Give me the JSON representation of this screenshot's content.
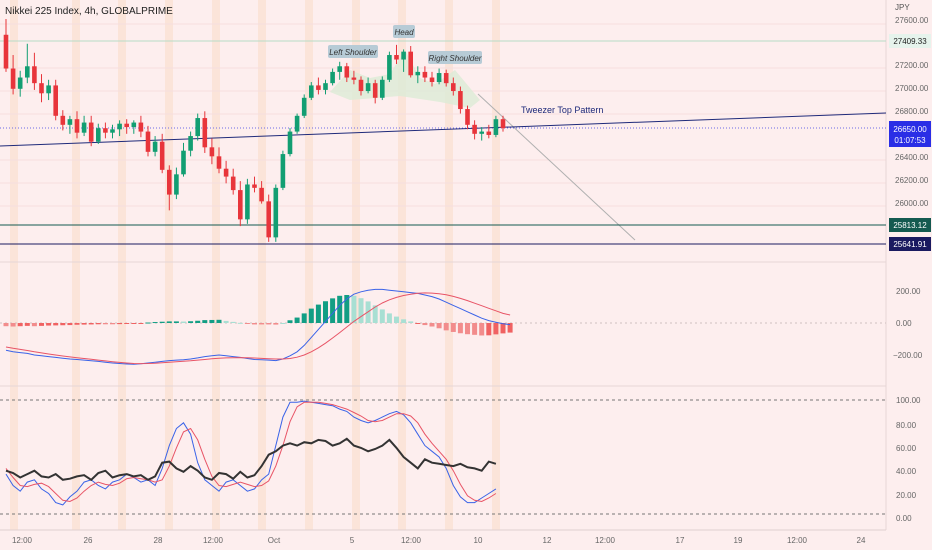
{
  "header": {
    "symbol_title": "Nikkei 225 Index, 4h, GLOBALPRIME",
    "currency": "JPY"
  },
  "annotations": {
    "left_shoulder": "Left Shoulder",
    "head": "Head",
    "right_shoulder": "Right Shoulder",
    "pattern_label": "Tweezer Top Pattern"
  },
  "price_axis": {
    "ticks": [
      "27600.00",
      "27200.00",
      "27000.00",
      "26800.00",
      "26400.00",
      "26200.00",
      "26000.00"
    ],
    "tag_top": {
      "value": "27409.33",
      "color": "#e6f3ec"
    },
    "tag_last": {
      "value": "26650.00",
      "time": "01:07:53",
      "color": "#2a2ee6"
    },
    "tag_support1": {
      "value": "25813.12",
      "color": "#145a50"
    },
    "tag_support2": {
      "value": "25641.91",
      "color": "#1a1a60"
    }
  },
  "macd_axis": {
    "ticks": [
      "200.00",
      "0.00",
      "−200.00"
    ]
  },
  "stoch_axis": {
    "ticks": [
      "100.00",
      "80.00",
      "60.00",
      "40.00",
      "20.00",
      "0.00"
    ]
  },
  "time_axis": {
    "labels": [
      "12:00",
      "26",
      "28",
      "12:00",
      "Oct",
      "5",
      "12:00",
      "10",
      "12",
      "12:00",
      "17",
      "19",
      "12:00",
      "24"
    ]
  },
  "colors": {
    "up": "#129e72",
    "down": "#e8353b",
    "macd": "#3a63e8",
    "signal": "#e85466",
    "trend": "#1f2a7a",
    "support1": "#145a50",
    "support2": "#1a1a60"
  },
  "chart_data": [
    {
      "type": "candlestick",
      "title": "Nikkei 225 Index, 4h, GLOBALPRIME",
      "ylim": [
        25550,
        27700
      ],
      "horizontal_levels": [
        27409.33,
        25813.12,
        25641.91
      ],
      "last_price": 26650.0,
      "candles": [
        {
          "o": 27480,
          "h": 27620,
          "l": 27150,
          "c": 27180
        },
        {
          "o": 27180,
          "h": 27300,
          "l": 26950,
          "c": 27000
        },
        {
          "o": 27000,
          "h": 27160,
          "l": 26930,
          "c": 27100
        },
        {
          "o": 27100,
          "h": 27400,
          "l": 27050,
          "c": 27200
        },
        {
          "o": 27200,
          "h": 27320,
          "l": 26990,
          "c": 27050
        },
        {
          "o": 27050,
          "h": 27130,
          "l": 26880,
          "c": 26960
        },
        {
          "o": 26960,
          "h": 27080,
          "l": 26900,
          "c": 27030
        },
        {
          "o": 27030,
          "h": 27080,
          "l": 26720,
          "c": 26760
        },
        {
          "o": 26760,
          "h": 26810,
          "l": 26630,
          "c": 26680
        },
        {
          "o": 26680,
          "h": 26760,
          "l": 26600,
          "c": 26730
        },
        {
          "o": 26730,
          "h": 26800,
          "l": 26560,
          "c": 26610
        },
        {
          "o": 26610,
          "h": 26760,
          "l": 26580,
          "c": 26700
        },
        {
          "o": 26700,
          "h": 26760,
          "l": 26490,
          "c": 26530
        },
        {
          "o": 26530,
          "h": 26690,
          "l": 26510,
          "c": 26650
        },
        {
          "o": 26650,
          "h": 26700,
          "l": 26560,
          "c": 26610
        },
        {
          "o": 26610,
          "h": 26680,
          "l": 26560,
          "c": 26640
        },
        {
          "o": 26640,
          "h": 26720,
          "l": 26580,
          "c": 26690
        },
        {
          "o": 26690,
          "h": 26730,
          "l": 26600,
          "c": 26660
        },
        {
          "o": 26660,
          "h": 26720,
          "l": 26600,
          "c": 26700
        },
        {
          "o": 26700,
          "h": 26760,
          "l": 26570,
          "c": 26620
        },
        {
          "o": 26620,
          "h": 26670,
          "l": 26400,
          "c": 26440
        },
        {
          "o": 26440,
          "h": 26580,
          "l": 26400,
          "c": 26530
        },
        {
          "o": 26530,
          "h": 26600,
          "l": 26250,
          "c": 26280
        },
        {
          "o": 26280,
          "h": 26320,
          "l": 25920,
          "c": 26060
        },
        {
          "o": 26060,
          "h": 26300,
          "l": 26020,
          "c": 26240
        },
        {
          "o": 26240,
          "h": 26520,
          "l": 26220,
          "c": 26450
        },
        {
          "o": 26450,
          "h": 26620,
          "l": 26400,
          "c": 26580
        },
        {
          "o": 26580,
          "h": 26780,
          "l": 26540,
          "c": 26740
        },
        {
          "o": 26740,
          "h": 26800,
          "l": 26430,
          "c": 26480
        },
        {
          "o": 26480,
          "h": 26560,
          "l": 26330,
          "c": 26400
        },
        {
          "o": 26400,
          "h": 26480,
          "l": 26250,
          "c": 26290
        },
        {
          "o": 26290,
          "h": 26360,
          "l": 26160,
          "c": 26220
        },
        {
          "o": 26220,
          "h": 26290,
          "l": 26060,
          "c": 26100
        },
        {
          "o": 26100,
          "h": 26180,
          "l": 25780,
          "c": 25840
        },
        {
          "o": 25840,
          "h": 26200,
          "l": 25800,
          "c": 26150
        },
        {
          "o": 26150,
          "h": 26220,
          "l": 26080,
          "c": 26120
        },
        {
          "o": 26120,
          "h": 26180,
          "l": 25980,
          "c": 26000
        },
        {
          "o": 26000,
          "h": 26060,
          "l": 25640,
          "c": 25680
        },
        {
          "o": 25680,
          "h": 26150,
          "l": 25640,
          "c": 26120
        },
        {
          "o": 26120,
          "h": 26450,
          "l": 26100,
          "c": 26420
        },
        {
          "o": 26420,
          "h": 26650,
          "l": 26400,
          "c": 26620
        },
        {
          "o": 26620,
          "h": 26780,
          "l": 26600,
          "c": 26760
        },
        {
          "o": 26760,
          "h": 26950,
          "l": 26740,
          "c": 26920
        },
        {
          "o": 26920,
          "h": 27060,
          "l": 26900,
          "c": 27030
        },
        {
          "o": 27030,
          "h": 27100,
          "l": 26950,
          "c": 26990
        },
        {
          "o": 26990,
          "h": 27080,
          "l": 26950,
          "c": 27050
        },
        {
          "o": 27050,
          "h": 27180,
          "l": 27030,
          "c": 27150
        },
        {
          "o": 27150,
          "h": 27240,
          "l": 27080,
          "c": 27200
        },
        {
          "o": 27200,
          "h": 27230,
          "l": 27060,
          "c": 27100
        },
        {
          "o": 27100,
          "h": 27160,
          "l": 27040,
          "c": 27080
        },
        {
          "o": 27080,
          "h": 27110,
          "l": 26940,
          "c": 26980
        },
        {
          "o": 26980,
          "h": 27100,
          "l": 26960,
          "c": 27050
        },
        {
          "o": 27050,
          "h": 27080,
          "l": 26870,
          "c": 26920
        },
        {
          "o": 26920,
          "h": 27110,
          "l": 26900,
          "c": 27080
        },
        {
          "o": 27080,
          "h": 27330,
          "l": 27060,
          "c": 27300
        },
        {
          "o": 27300,
          "h": 27390,
          "l": 27220,
          "c": 27260
        },
        {
          "o": 27260,
          "h": 27350,
          "l": 27150,
          "c": 27330
        },
        {
          "o": 27330,
          "h": 27380,
          "l": 27100,
          "c": 27120
        },
        {
          "o": 27120,
          "h": 27200,
          "l": 27050,
          "c": 27150
        },
        {
          "o": 27150,
          "h": 27200,
          "l": 27060,
          "c": 27100
        },
        {
          "o": 27100,
          "h": 27150,
          "l": 27020,
          "c": 27060
        },
        {
          "o": 27060,
          "h": 27180,
          "l": 27040,
          "c": 27140
        },
        {
          "o": 27140,
          "h": 27170,
          "l": 27020,
          "c": 27050
        },
        {
          "o": 27050,
          "h": 27100,
          "l": 26940,
          "c": 26980
        },
        {
          "o": 26980,
          "h": 27020,
          "l": 26780,
          "c": 26820
        },
        {
          "o": 26820,
          "h": 26850,
          "l": 26640,
          "c": 26680
        },
        {
          "o": 26680,
          "h": 26720,
          "l": 26550,
          "c": 26600
        },
        {
          "o": 26600,
          "h": 26660,
          "l": 26540,
          "c": 26620
        },
        {
          "o": 26620,
          "h": 26680,
          "l": 26560,
          "c": 26590
        },
        {
          "o": 26590,
          "h": 26760,
          "l": 26570,
          "c": 26730
        },
        {
          "o": 26730,
          "h": 26760,
          "l": 26620,
          "c": 26650
        }
      ]
    },
    {
      "type": "line",
      "title": "MACD",
      "ylim": [
        -300,
        300
      ],
      "series": [
        {
          "style": "macd",
          "values": [
            -170,
            -180,
            -185,
            -190,
            -200,
            -205,
            -210,
            -215,
            -220,
            -225,
            -228,
            -232,
            -236,
            -240,
            -245,
            -250,
            -253,
            -256,
            -258,
            -255,
            -250,
            -245,
            -240,
            -235,
            -232,
            -230,
            -225,
            -218,
            -210,
            -205,
            -200,
            -205,
            -210,
            -215,
            -222,
            -228,
            -230,
            -232,
            -235,
            -225,
            -205,
            -180,
            -140,
            -90,
            -40,
            10,
            60,
            110,
            150,
            180,
            195,
            205,
            210,
            210,
            205,
            200,
            195,
            190,
            185,
            175,
            165,
            150,
            130,
            110,
            90,
            70,
            50,
            30,
            15,
            5,
            -5,
            -10
          ]
        },
        {
          "style": "signal",
          "values": [
            -150,
            -158,
            -165,
            -172,
            -180,
            -187,
            -194,
            -200,
            -206,
            -212,
            -217,
            -222,
            -227,
            -232,
            -237,
            -242,
            -246,
            -250,
            -253,
            -254,
            -253,
            -251,
            -248,
            -245,
            -242,
            -239,
            -236,
            -232,
            -228,
            -224,
            -220,
            -218,
            -217,
            -216,
            -217,
            -219,
            -221,
            -223,
            -225,
            -225,
            -222,
            -214,
            -200,
            -180,
            -155,
            -126,
            -94,
            -60,
            -25,
            10,
            40,
            70,
            100,
            125,
            145,
            160,
            172,
            180,
            186,
            188,
            187,
            183,
            176,
            166,
            154,
            140,
            124,
            108,
            92,
            76,
            60,
            50
          ]
        }
      ],
      "histogram": [
        -20,
        -22,
        -20,
        -18,
        -20,
        -18,
        -16,
        -15,
        -14,
        -13,
        -11,
        -10,
        -9,
        -8,
        -8,
        -8,
        -7,
        -6,
        -5,
        -1,
        3,
        6,
        8,
        10,
        10,
        9,
        11,
        14,
        18,
        19,
        20,
        13,
        7,
        1,
        -5,
        -9,
        -9,
        -9,
        -10,
        0,
        17,
        34,
        60,
        90,
        115,
        136,
        154,
        170,
        175,
        170,
        155,
        135,
        110,
        85,
        60,
        40,
        23,
        10,
        -1,
        -13,
        -22,
        -33,
        -46,
        -56,
        -64,
        -70,
        -74,
        -78,
        -77,
        -71,
        -65,
        -60
      ]
    },
    {
      "type": "line",
      "title": "Stochastic",
      "ylim": [
        0,
        100
      ],
      "reference_levels": [
        100,
        0
      ],
      "series": [
        {
          "style": "k",
          "values": [
            35,
            25,
            20,
            28,
            30,
            22,
            18,
            10,
            8,
            15,
            20,
            28,
            30,
            25,
            22,
            28,
            30,
            35,
            32,
            28,
            30,
            25,
            40,
            60,
            75,
            80,
            70,
            45,
            30,
            25,
            20,
            28,
            30,
            25,
            20,
            22,
            30,
            35,
            60,
            85,
            98,
            98,
            99,
            98,
            97,
            96,
            95,
            92,
            90,
            85,
            82,
            80,
            82,
            85,
            88,
            90,
            87,
            80,
            70,
            60,
            55,
            50,
            40,
            25,
            15,
            10,
            10,
            14,
            18,
            22
          ]
        },
        {
          "style": "d",
          "values": [
            40,
            32,
            25,
            24,
            26,
            27,
            24,
            18,
            12,
            11,
            14,
            20,
            25,
            28,
            26,
            25,
            27,
            31,
            32,
            31,
            30,
            28,
            30,
            42,
            58,
            72,
            75,
            65,
            48,
            33,
            25,
            24,
            26,
            28,
            26,
            24,
            25,
            29,
            42,
            60,
            81,
            94,
            98,
            98,
            98,
            97,
            96,
            94,
            92,
            89,
            86,
            82,
            81,
            82,
            85,
            88,
            88,
            86,
            80,
            70,
            62,
            55,
            48,
            38,
            26,
            16,
            12,
            11,
            14,
            18
          ]
        },
        {
          "style": "rsi",
          "values": [
            38,
            36,
            32,
            35,
            38,
            33,
            32,
            35,
            30,
            31,
            33,
            34,
            30,
            36,
            38,
            32,
            34,
            35,
            33,
            34,
            30,
            33,
            45,
            46,
            40,
            37,
            42,
            38,
            32,
            30,
            36,
            35,
            31,
            37,
            32,
            34,
            42,
            52,
            55,
            60,
            62,
            60,
            63,
            62,
            65,
            64,
            60,
            62,
            66,
            60,
            58,
            55,
            57,
            60,
            65,
            58,
            50,
            45,
            40,
            48,
            45,
            44,
            43,
            42,
            44,
            41,
            40,
            38,
            46,
            44
          ]
        }
      ]
    }
  ]
}
